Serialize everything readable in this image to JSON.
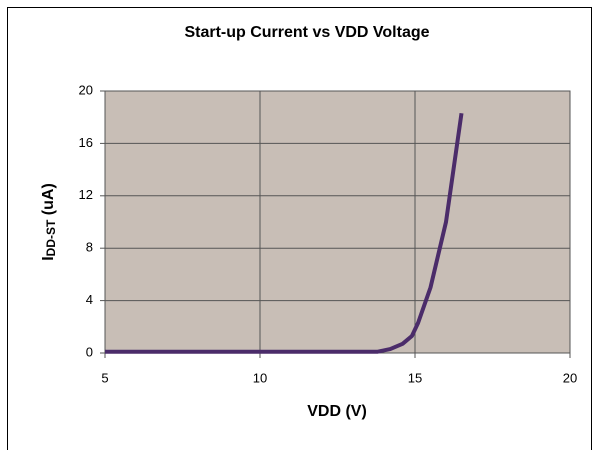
{
  "chart_data": {
    "type": "line",
    "title": "Start-up Current vs VDD Voltage",
    "xlabel": "VDD (V)",
    "ylabel_parts": [
      "I",
      "DD-ST",
      " (uA)"
    ],
    "x": [
      5,
      8,
      11,
      13.8,
      14.2,
      14.6,
      14.9,
      15.1,
      15.5,
      16,
      16.5
    ],
    "series": [
      {
        "color": "#4b2c6a",
        "values": [
          0.1,
          0.1,
          0.1,
          0.1,
          0.3,
          0.7,
          1.3,
          2.3,
          5.0,
          10.0,
          18.3
        ]
      }
    ],
    "xlim": [
      5,
      20
    ],
    "xticks": [
      5,
      10,
      15,
      20
    ],
    "ylim": [
      0,
      20
    ],
    "yticks": [
      0,
      4,
      8,
      12,
      16,
      20
    ],
    "grid": true,
    "plot_background": "#c8beb6"
  }
}
